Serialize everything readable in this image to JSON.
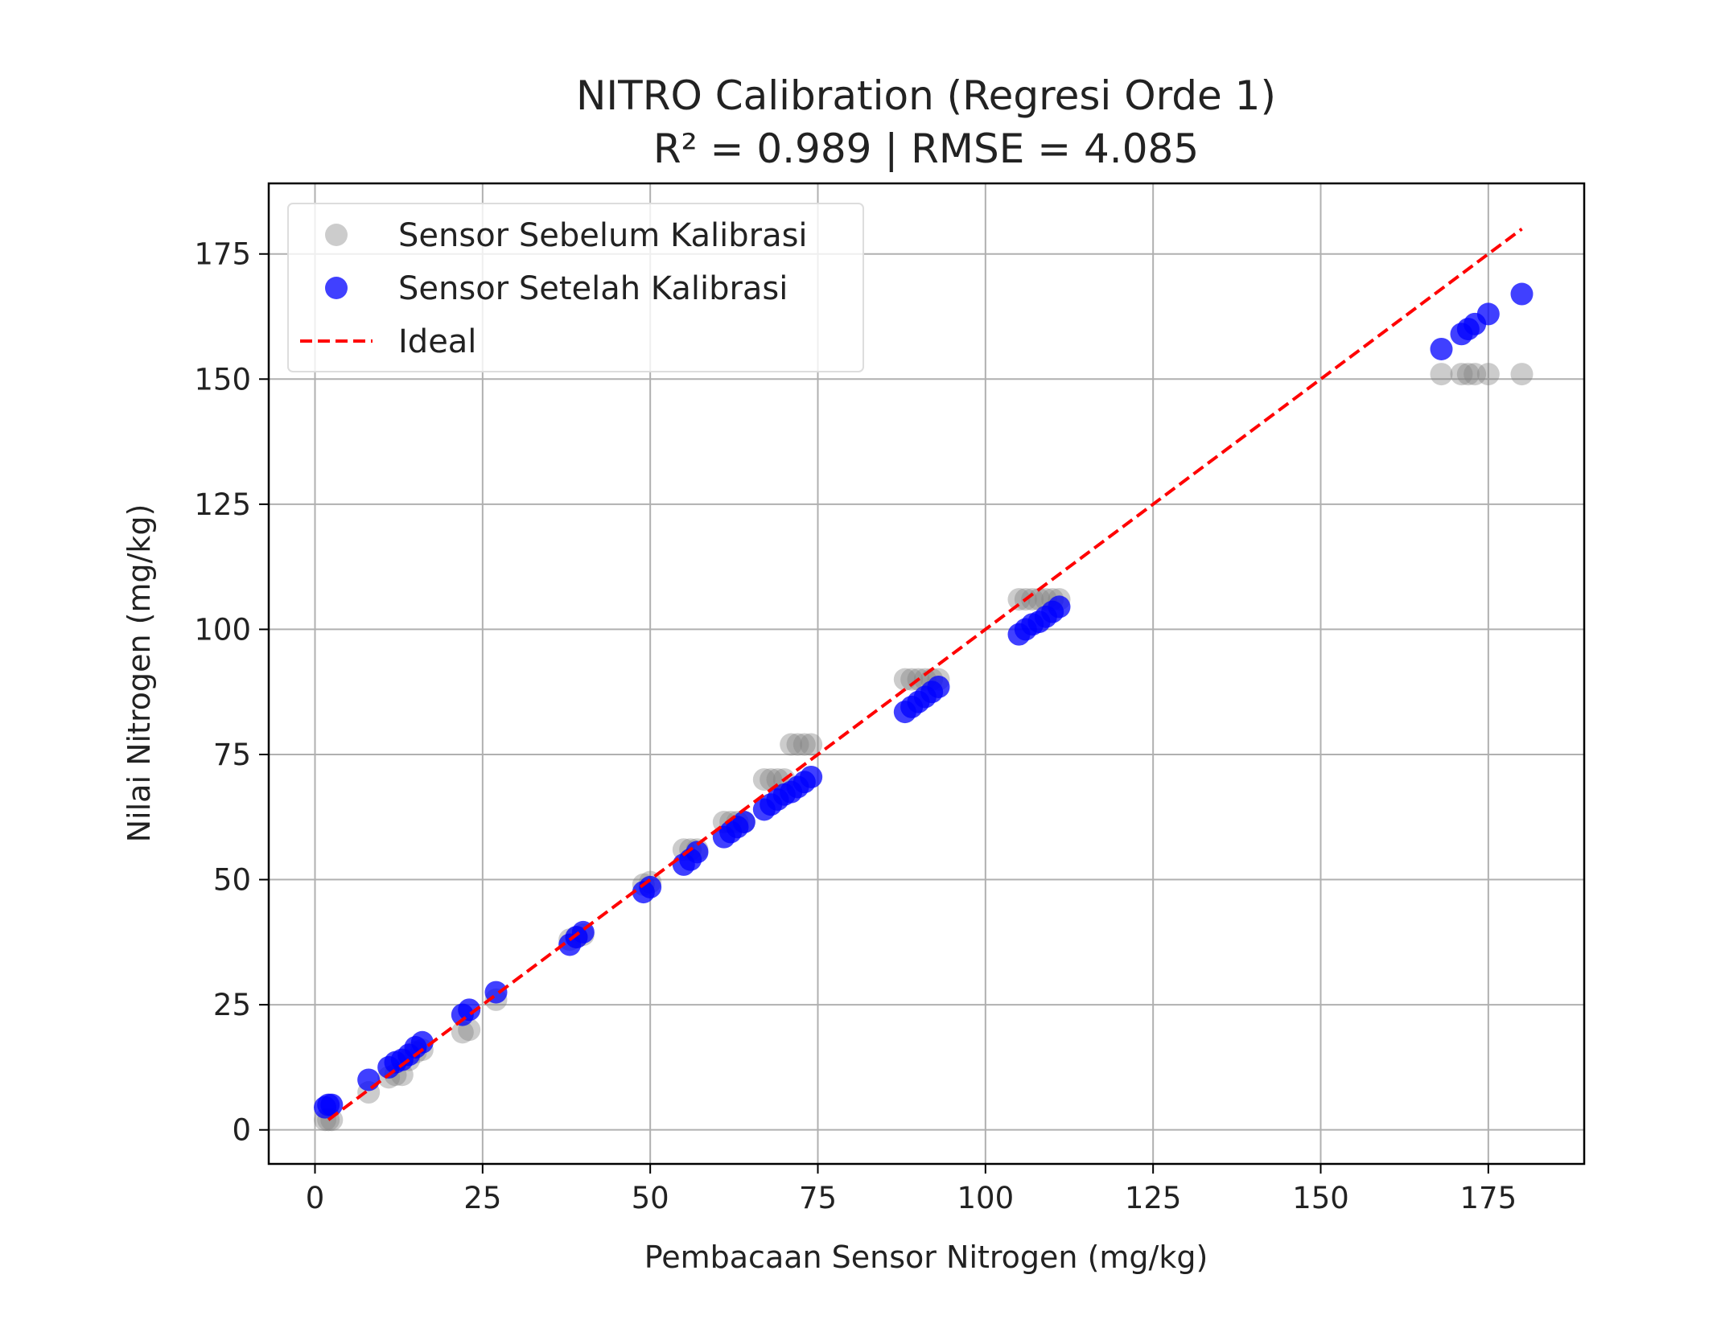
{
  "chart_data": {
    "type": "scatter",
    "title": "NITRO Calibration (Regresi Orde 1)",
    "subtitle": "R² = 0.989 | RMSE = 4.085",
    "xlabel": "Pembacaan Sensor Nitrogen (mg/kg)",
    "ylabel": "Nilai Nitrogen (mg/kg)",
    "xlim": [
      -6.9,
      189.3
    ],
    "ylim": [
      -6.8,
      189.1
    ],
    "xticks": [
      0,
      25,
      50,
      75,
      100,
      125,
      150,
      175
    ],
    "yticks": [
      0,
      25,
      50,
      75,
      100,
      125,
      150,
      175
    ],
    "grid": true,
    "legend_position": "top-left",
    "x": [
      1.5,
      2,
      2.5,
      8,
      11,
      12,
      13,
      14,
      15,
      16,
      22,
      23,
      27,
      38,
      39,
      40,
      49,
      50,
      55,
      56,
      57,
      61,
      62,
      63,
      64,
      67,
      68,
      69,
      70,
      71,
      72,
      73,
      74,
      88,
      89,
      90,
      91,
      92,
      93,
      105,
      106,
      107,
      108,
      109,
      110,
      111,
      168,
      171,
      172,
      173,
      175,
      180
    ],
    "series": [
      {
        "name": "Sensor Sebelum Kalibrasi",
        "color": "#808080",
        "values": [
          2,
          2,
          2,
          7.5,
          10.5,
          11,
          11,
          14,
          15.5,
          16,
          19.5,
          20,
          26,
          38,
          38.5,
          39,
          49,
          49.5,
          56,
          56,
          56,
          61.5,
          61.5,
          61.5,
          61.5,
          70,
          70,
          70,
          70,
          77,
          77,
          77,
          77,
          90,
          90,
          90,
          90,
          90,
          90,
          106,
          106,
          106,
          106,
          106,
          106,
          106,
          151,
          151,
          151,
          151,
          151,
          151
        ]
      },
      {
        "name": "Sensor Setelah Kalibrasi",
        "color": "#0000ff",
        "values": [
          4.5,
          5,
          5,
          10,
          12.5,
          13.5,
          14,
          15,
          16.5,
          17.5,
          23,
          24,
          27.5,
          37,
          38.5,
          39.5,
          47.5,
          48.5,
          53,
          54,
          55.5,
          58.5,
          59.5,
          60.5,
          61.5,
          64,
          65,
          66,
          67,
          67.5,
          68.5,
          69.5,
          70.5,
          83.5,
          84.5,
          85.5,
          86.5,
          87.5,
          88.5,
          99,
          100,
          101,
          101.5,
          102.5,
          103.5,
          104.5,
          156,
          159,
          160,
          161,
          163,
          167
        ]
      }
    ],
    "ideal": {
      "name": "Ideal",
      "color": "#ff0000",
      "x": [
        2,
        180
      ],
      "y": [
        2,
        180
      ]
    }
  }
}
